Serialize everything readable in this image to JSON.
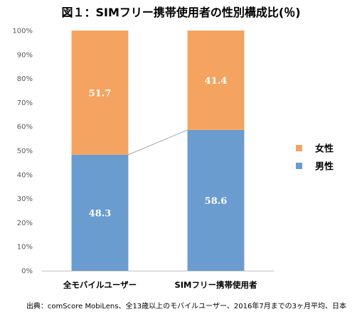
{
  "chart_data": {
    "type": "bar",
    "stacked": true,
    "percent": true,
    "title": "図１：SIMフリー携帯使用者の性別構成比(％)",
    "categories": [
      "全モバイルユーザー",
      "SIMフリー携帯使用者"
    ],
    "series": [
      {
        "name": "男性",
        "values": [
          48.3,
          58.6
        ],
        "color": "#6a9ccf"
      },
      {
        "name": "女性",
        "values": [
          51.7,
          41.4
        ],
        "color": "#f4a460"
      }
    ],
    "ylim": [
      0,
      100
    ],
    "yticks": [
      "0%",
      "10%",
      "20%",
      "30%",
      "40%",
      "50%",
      "60%",
      "70%",
      "80%",
      "90%",
      "100%"
    ],
    "xlabel": "",
    "ylabel": "",
    "legend_position": "right",
    "grid": false,
    "series_lines": true,
    "source": "出典：comScore MobiLens、全13歳以上のモバイルユーザー、2016年7月までの3ヶ月平均、日本"
  }
}
